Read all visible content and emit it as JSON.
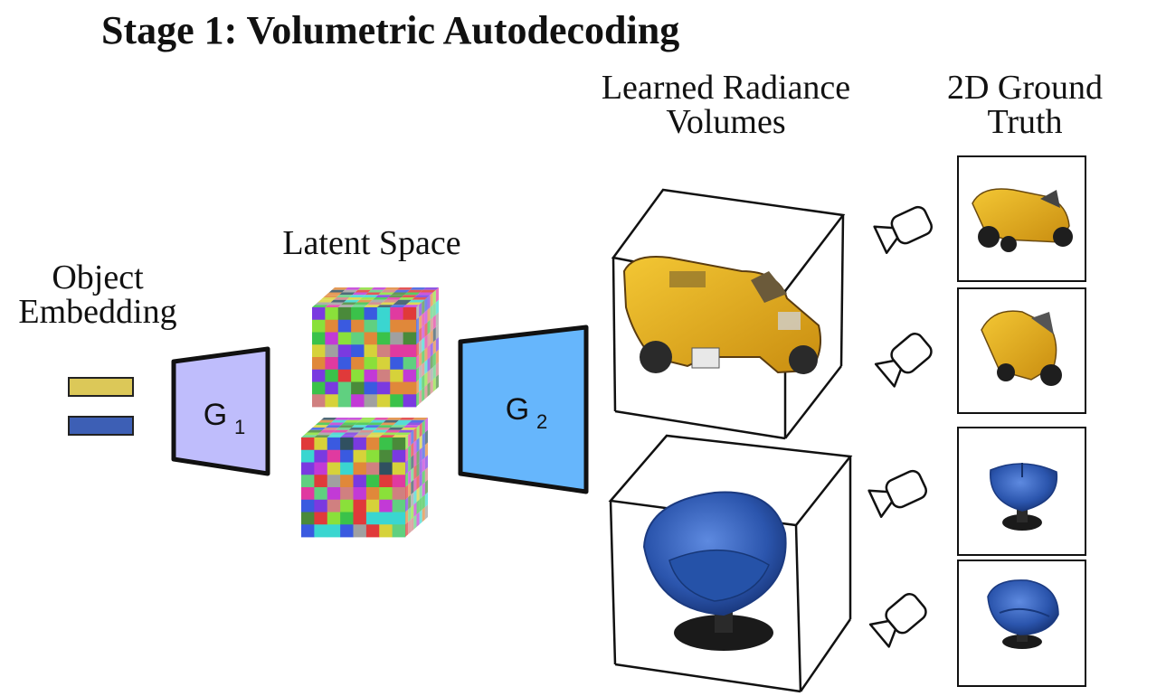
{
  "title": "Stage 1: Volumetric Autodecoding",
  "labels": {
    "embedding_line1": "Object",
    "embedding_line2": "Embedding",
    "latent": "Latent Space",
    "volumes_line1": "Learned Radiance",
    "volumes_line2": "Volumes",
    "gt_line1": "2D Ground",
    "gt_line2": "Truth"
  },
  "generators": [
    {
      "symbol": "G",
      "subscript": "1",
      "color": "#bfbdfc"
    },
    {
      "symbol": "G",
      "subscript": "2",
      "color": "#66b6fc"
    }
  ],
  "colors": {
    "embedding_yellow": "#dcc858",
    "embedding_blue": "#3d5fb5",
    "moto_yellow": "#e6b21a",
    "chair_blue": "#2f5bb5"
  },
  "icons": [
    "camera-icon",
    "motorcycle-render",
    "chair-render",
    "latent-voxel-cube"
  ]
}
